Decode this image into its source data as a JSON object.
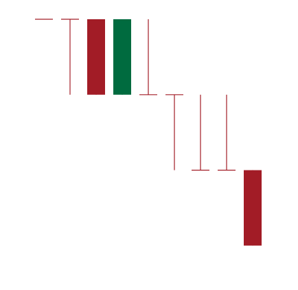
{
  "chart_data": {
    "type": "candlestick",
    "title": "",
    "xlabel": "",
    "ylabel": "",
    "grid": false,
    "legend": "none",
    "ylim": [
      0,
      10
    ],
    "colors": {
      "up": "#006b3f",
      "down": "#a21c26"
    },
    "candles": [
      {
        "index": 1,
        "open": 10,
        "high": 10,
        "low": 10,
        "close": 10
      },
      {
        "index": 2,
        "open": 10,
        "high": 10,
        "low": 7,
        "close": 10
      },
      {
        "index": 3,
        "open": 10,
        "high": 10,
        "low": 7,
        "close": 7
      },
      {
        "index": 4,
        "open": 7,
        "high": 10,
        "low": 7,
        "close": 10
      },
      {
        "index": 5,
        "open": 7,
        "high": 10,
        "low": 7,
        "close": 7
      },
      {
        "index": 6,
        "open": 7,
        "high": 7,
        "low": 4,
        "close": 7
      },
      {
        "index": 7,
        "open": 4,
        "high": 7,
        "low": 4,
        "close": 4
      },
      {
        "index": 8,
        "open": 4,
        "high": 7,
        "low": 4,
        "close": 4
      },
      {
        "index": 9,
        "open": 4,
        "high": 4,
        "low": 1,
        "close": 1
      }
    ]
  }
}
